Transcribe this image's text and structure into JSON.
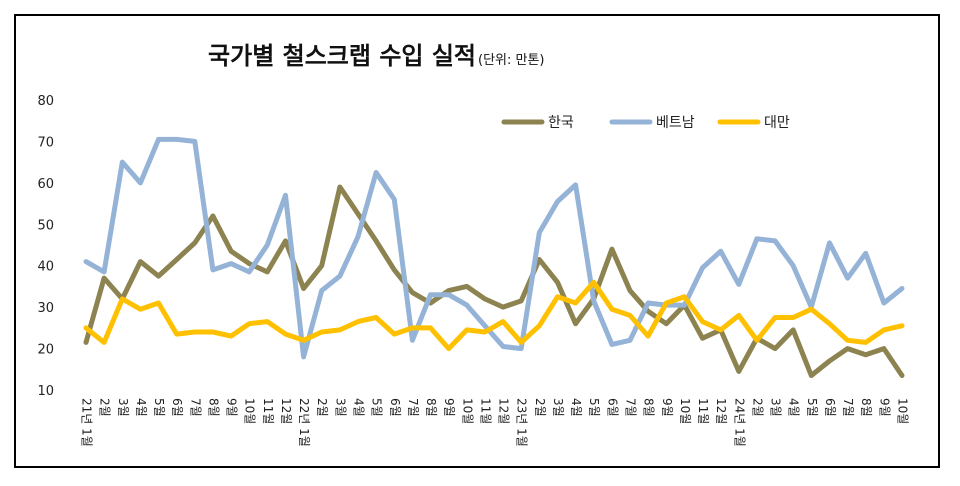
{
  "chart_data": {
    "type": "line",
    "title": "국가별 철스크랩 수입 실적",
    "subtitle": "(단위: 만톤)",
    "xlabel": "",
    "ylabel": "",
    "ylim": [
      10,
      80
    ],
    "yticks": [
      10,
      20,
      30,
      40,
      50,
      60,
      70,
      80
    ],
    "grid": false,
    "legend_position": "top-right",
    "categories": [
      "21년 1월",
      "2월",
      "3월",
      "4월",
      "5월",
      "6월",
      "7월",
      "8월",
      "9월",
      "10월",
      "11월",
      "12월",
      "22년 1월",
      "2월",
      "3월",
      "4월",
      "5월",
      "6월",
      "7월",
      "8월",
      "9월",
      "10월",
      "11월",
      "12월",
      "23년 1월",
      "2월",
      "3월",
      "4월",
      "5월",
      "6월",
      "7월",
      "8월",
      "9월",
      "10월",
      "11월",
      "12월",
      "24년 1월",
      "2월",
      "3월",
      "4월",
      "5월",
      "6월",
      "7월",
      "8월",
      "9월",
      "10월"
    ],
    "series": [
      {
        "name": "한국",
        "color": "#8c8350",
        "values": [
          21.5,
          37,
          32,
          41,
          37.5,
          41.5,
          45.5,
          52,
          43.5,
          40.5,
          38.5,
          46,
          34.5,
          40,
          59,
          52.5,
          46,
          39,
          33.5,
          31,
          34,
          35,
          32,
          30,
          31.5,
          41.5,
          36,
          26,
          32,
          44,
          34,
          29,
          26,
          30.5,
          22.5,
          24.5,
          14.5,
          22.5,
          20,
          24.5,
          13.5,
          17,
          20,
          18.5,
          20,
          13.5
        ]
      },
      {
        "name": "베트남",
        "color": "#95b3d7",
        "values": [
          41,
          38.5,
          65,
          60,
          70.5,
          70.5,
          70,
          39,
          40.5,
          38.5,
          45,
          57,
          18,
          34,
          37.5,
          47,
          62.5,
          56,
          22,
          33,
          33,
          30.5,
          25.5,
          20.5,
          20,
          48,
          55.5,
          59.5,
          31.5,
          21,
          22,
          31,
          30.5,
          30.5,
          39.5,
          43.5,
          35.5,
          46.5,
          46,
          40,
          30,
          45.5,
          37,
          43,
          31,
          34.5
        ]
      },
      {
        "name": "대만",
        "color": "#ffc000",
        "values": [
          25,
          21.5,
          32,
          29.5,
          31,
          23.5,
          24,
          24,
          23,
          26,
          26.5,
          23.5,
          22,
          24,
          24.5,
          26.5,
          27.5,
          23.5,
          25,
          25,
          20,
          24.5,
          24,
          26.5,
          21.5,
          25.5,
          32.5,
          31,
          36,
          29.5,
          28,
          23,
          31,
          32.5,
          26.5,
          24.5,
          28,
          22,
          27.5,
          27.5,
          29.5,
          26,
          22,
          21.5,
          24.5,
          25.5
        ]
      }
    ]
  }
}
